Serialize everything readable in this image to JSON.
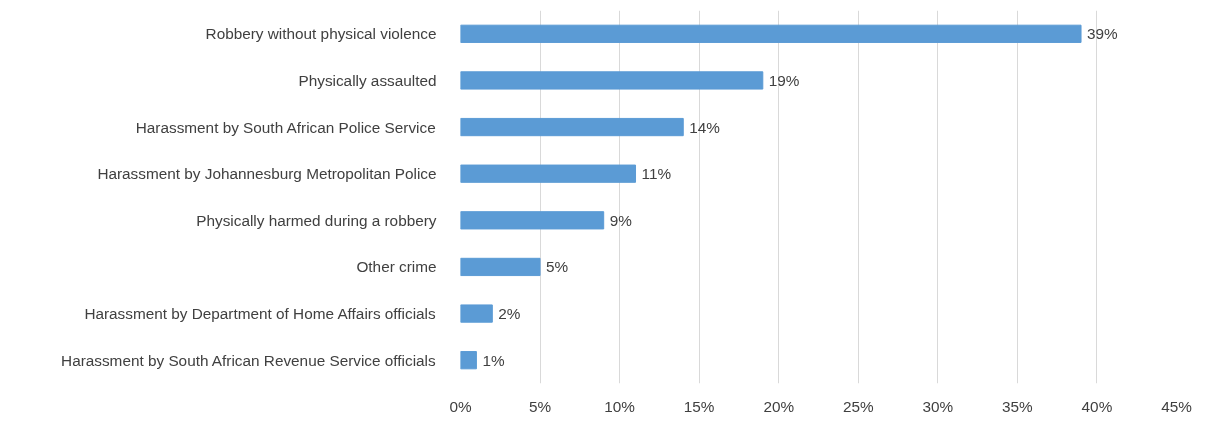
{
  "chart_data": {
    "type": "bar",
    "orientation": "horizontal",
    "categories": [
      "Robbery without physical violence",
      "Physically assaulted",
      "Harassment by South African Police Service",
      "Harassment by Johannesburg Metropolitan Police",
      "Physically harmed during a robbery",
      "Other crime",
      "Harassment by Department of Home Affairs officials",
      "Harassment by South African Revenue Service officials"
    ],
    "values": [
      39,
      19,
      14,
      11,
      9,
      5,
      2,
      1
    ],
    "value_labels": [
      "39%",
      "19%",
      "14%",
      "11%",
      "9%",
      "5%",
      "2%",
      "1%"
    ],
    "color": "#5b9bd5",
    "xlim": [
      0,
      45
    ],
    "xticks": [
      {
        "value": 0,
        "label": "0%"
      },
      {
        "value": 5,
        "label": "5%"
      },
      {
        "value": 10,
        "label": "10%"
      },
      {
        "value": 15,
        "label": "15%"
      },
      {
        "value": 20,
        "label": "20%"
      },
      {
        "value": 25,
        "label": "25%"
      },
      {
        "value": 30,
        "label": "30%"
      },
      {
        "value": 35,
        "label": "35%"
      },
      {
        "value": 40,
        "label": "40%"
      },
      {
        "value": 45,
        "label": "45%"
      }
    ],
    "grid": "x"
  }
}
